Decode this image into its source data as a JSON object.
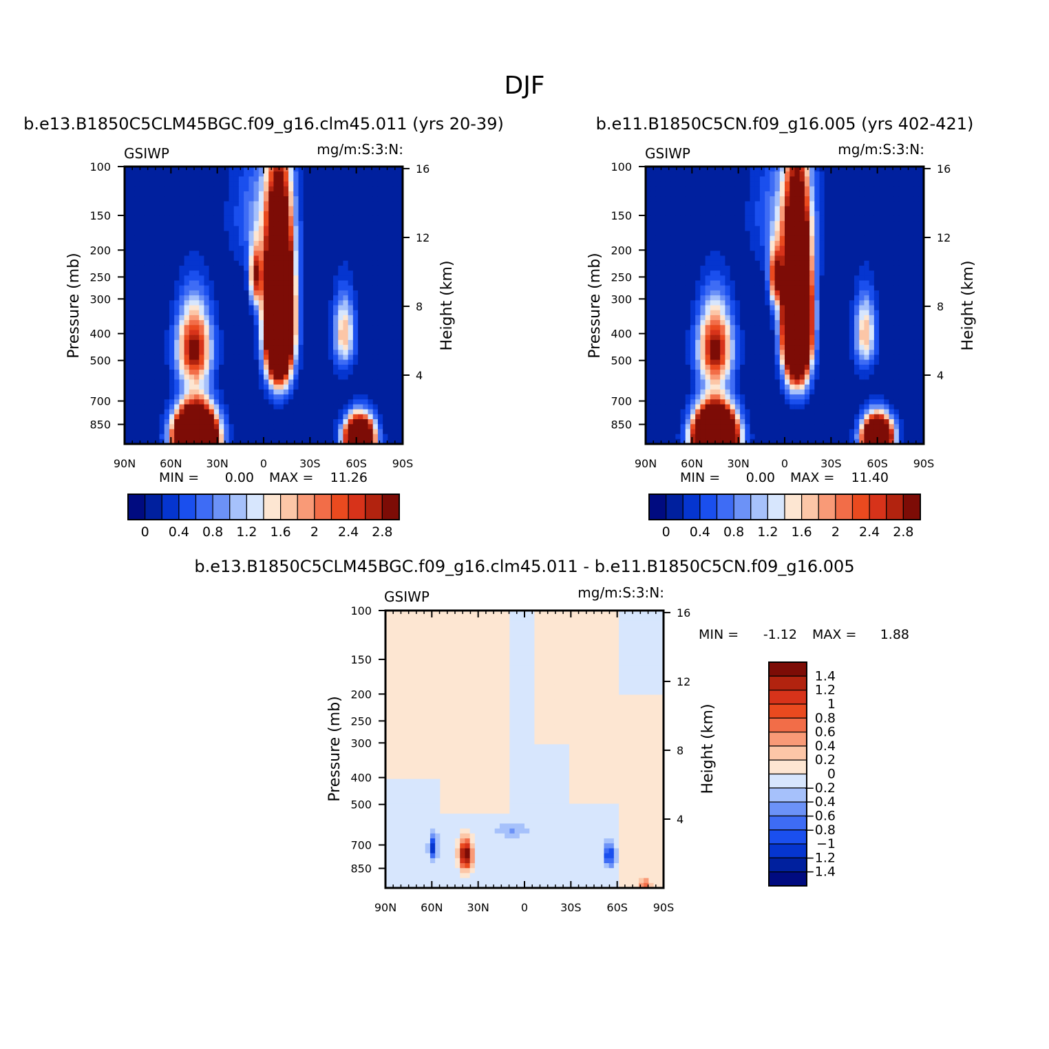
{
  "figure": {
    "title": "DJF"
  },
  "colors": {
    "seq": [
      "#000b80",
      "#00209e",
      "#0535cf",
      "#1a4fee",
      "#3e6cf5",
      "#6c92f7",
      "#a6c1fb",
      "#d7e6fd",
      "#fde6d2",
      "#fcc6a7",
      "#f99a77",
      "#f26d48",
      "#ea4a1f",
      "#d7331a",
      "#b2230f",
      "#7d0c06"
    ],
    "diff": [
      "#000b80",
      "#00209e",
      "#0535cf",
      "#1a4fee",
      "#3e6cf5",
      "#6c92f7",
      "#a6c1fb",
      "#d7e6fd",
      "#fde6d2",
      "#fcc6a7",
      "#f99a77",
      "#f26d48",
      "#ea4a1f",
      "#d7331a",
      "#b2230f",
      "#7d0c06"
    ]
  },
  "chart_data": [
    {
      "type": "heatmap",
      "id": "p1",
      "title": "b.e13.B1850C5CLM45BGC.f09_g16.clm45.011 (yrs 20-39)",
      "left_label": "GSIWP",
      "right_label": "mg/m:S:3:N:",
      "xlabel": "",
      "ylabel": "Pressure (mb)",
      "y2label": "Height (km)",
      "x_ticks": [
        "90N",
        "60N",
        "30N",
        "0",
        "30S",
        "60S",
        "90S"
      ],
      "x_tick_lat": [
        90,
        60,
        30,
        0,
        -30,
        -60,
        -90
      ],
      "y_ticks": [
        "100",
        "150",
        "200",
        "250",
        "300",
        "400",
        "500",
        "700",
        "850"
      ],
      "y_tick_p": [
        100,
        150,
        200,
        250,
        300,
        400,
        500,
        700,
        850
      ],
      "y2_ticks": [
        "16",
        "12",
        "8",
        "4"
      ],
      "y2_tick_km": [
        16,
        12,
        8,
        4
      ],
      "ylim": [
        100,
        1000
      ],
      "min_label": "MIN =",
      "min_value": "0.00",
      "max_label": "MAX =",
      "max_value": "11.26",
      "levels": [
        0,
        0.2,
        0.4,
        0.6,
        0.8,
        1.0,
        1.2,
        1.4,
        1.6,
        1.8,
        2.0,
        2.2,
        2.4,
        2.6,
        2.8
      ],
      "colorbar_labels": [
        "0",
        "0.4",
        "0.8",
        "1.2",
        "1.6",
        "2",
        "2.4",
        "2.8"
      ],
      "features": [
        {
          "lat": 44,
          "p": 950,
          "amp": 11.3,
          "slat": 12,
          "sp": 200
        },
        {
          "lat": 45,
          "p": 450,
          "amp": 3.0,
          "slat": 11,
          "sp": 150
        },
        {
          "lat": -10,
          "p": 350,
          "amp": 11.0,
          "slat": 8,
          "sp": 200
        },
        {
          "lat": 5,
          "p": 250,
          "amp": 2.5,
          "slat": 4,
          "sp": 60
        },
        {
          "lat": -62,
          "p": 950,
          "amp": 7.0,
          "slat": 9,
          "sp": 150
        },
        {
          "lat": -52,
          "p": 400,
          "amp": 1.8,
          "slat": 7,
          "sp": 120
        },
        {
          "lat": 0,
          "p": 150,
          "amp": 0.9,
          "slat": 20,
          "sp": 80
        }
      ]
    },
    {
      "type": "heatmap",
      "id": "p2",
      "title": "b.e11.B1850C5CN.f09_g16.005 (yrs 402-421)",
      "left_label": "GSIWP",
      "right_label": "mg/m:S:3:N:",
      "xlabel": "",
      "ylabel": "Pressure (mb)",
      "y2label": "Height (km)",
      "x_ticks": [
        "90N",
        "60N",
        "30N",
        "0",
        "30S",
        "60S",
        "90S"
      ],
      "x_tick_lat": [
        90,
        60,
        30,
        0,
        -30,
        -60,
        -90
      ],
      "y_ticks": [
        "100",
        "150",
        "200",
        "250",
        "300",
        "400",
        "500",
        "700",
        "850"
      ],
      "y_tick_p": [
        100,
        150,
        200,
        250,
        300,
        400,
        500,
        700,
        850
      ],
      "y2_ticks": [
        "16",
        "12",
        "8",
        "4"
      ],
      "y2_tick_km": [
        16,
        12,
        8,
        4
      ],
      "ylim": [
        100,
        1000
      ],
      "min_label": "MIN =",
      "min_value": "0.00",
      "max_label": "MAX =",
      "max_value": "11.40",
      "levels": [
        0,
        0.2,
        0.4,
        0.6,
        0.8,
        1.0,
        1.2,
        1.4,
        1.6,
        1.8,
        2.0,
        2.2,
        2.4,
        2.6,
        2.8
      ],
      "colorbar_labels": [
        "0",
        "0.4",
        "0.8",
        "1.2",
        "1.6",
        "2",
        "2.4",
        "2.8"
      ],
      "features": [
        {
          "lat": 45,
          "p": 950,
          "amp": 11.4,
          "slat": 12,
          "sp": 200
        },
        {
          "lat": 45,
          "p": 450,
          "amp": 3.0,
          "slat": 11,
          "sp": 150
        },
        {
          "lat": -8,
          "p": 350,
          "amp": 11.2,
          "slat": 8,
          "sp": 200
        },
        {
          "lat": 6,
          "p": 250,
          "amp": 2.6,
          "slat": 4,
          "sp": 60
        },
        {
          "lat": -60,
          "p": 950,
          "amp": 7.5,
          "slat": 9,
          "sp": 150
        },
        {
          "lat": -52,
          "p": 400,
          "amp": 1.8,
          "slat": 7,
          "sp": 120
        },
        {
          "lat": 0,
          "p": 150,
          "amp": 0.9,
          "slat": 20,
          "sp": 80
        }
      ]
    },
    {
      "type": "heatmap",
      "id": "p3",
      "title": "b.e13.B1850C5CLM45BGC.f09_g16.clm45.011 - b.e11.B1850C5CN.f09_g16.005",
      "left_label": "GSIWP",
      "right_label": "mg/m:S:3:N:",
      "xlabel": "",
      "ylabel": "Pressure (mb)",
      "y2label": "Height (km)",
      "x_ticks": [
        "90N",
        "60N",
        "30N",
        "0",
        "30S",
        "60S",
        "90S"
      ],
      "x_tick_lat": [
        90,
        60,
        30,
        0,
        -30,
        -60,
        -90
      ],
      "y_ticks": [
        "100",
        "150",
        "200",
        "250",
        "300",
        "400",
        "500",
        "700",
        "850"
      ],
      "y_tick_p": [
        100,
        150,
        200,
        250,
        300,
        400,
        500,
        700,
        850
      ],
      "y2_ticks": [
        "16",
        "12",
        "8",
        "4"
      ],
      "y2_tick_km": [
        16,
        12,
        8,
        4
      ],
      "ylim": [
        100,
        1000
      ],
      "min_label": "MIN =",
      "min_value": "-1.12",
      "max_label": "MAX =",
      "max_value": "1.88",
      "levels": [
        -1.4,
        -1.2,
        -1.0,
        -0.8,
        -0.6,
        -0.4,
        -0.2,
        0,
        0.2,
        0.4,
        0.6,
        0.8,
        1.0,
        1.2,
        1.4
      ],
      "colorbar_labels": [
        "1.4",
        "1.2",
        "1",
        "0.8",
        "0.6",
        "0.4",
        "0.2",
        "0",
        "-0.2",
        "-0.4",
        "-0.6",
        "-0.8",
        "-1",
        "-1.2",
        "-1.4"
      ],
      "features": [
        {
          "lat": 38,
          "p": 760,
          "amp": 1.88,
          "slat": 4,
          "sp": 90
        },
        {
          "lat": 59,
          "p": 720,
          "amp": -1.12,
          "slat": 2.5,
          "sp": 70
        },
        {
          "lat": -55,
          "p": 760,
          "amp": -1.05,
          "slat": 3.5,
          "sp": 70
        },
        {
          "lat": -78,
          "p": 980,
          "amp": 0.7,
          "slat": 3,
          "sp": 50
        },
        {
          "lat": 8,
          "p": 620,
          "amp": -0.35,
          "slat": 10,
          "sp": 35
        }
      ]
    }
  ]
}
